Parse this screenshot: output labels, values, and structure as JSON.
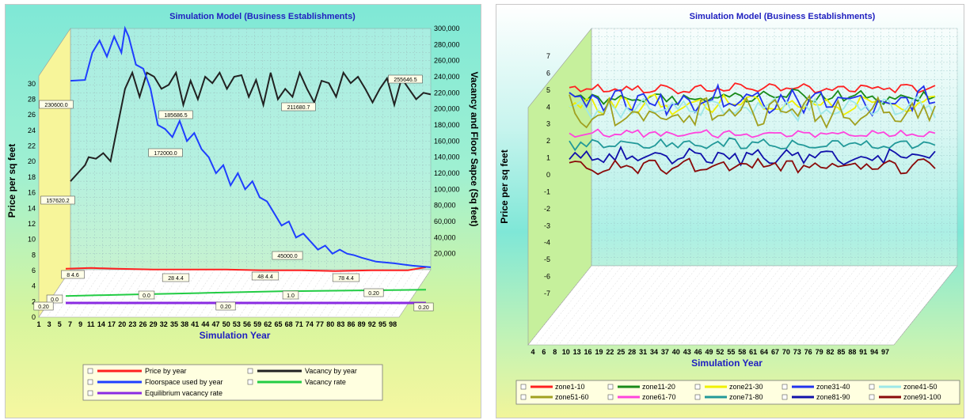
{
  "chart_data": [
    {
      "type": "line",
      "title": "Simulation Model (Business Establishments)",
      "xlabel": "Simulation Year",
      "ylabel": "Price per sq feet",
      "y2label": "Vacancy and Floor Sapce (Sq feet)",
      "x_ticks": [
        "1",
        "3",
        "5",
        "7",
        "9",
        "11",
        "14",
        "17",
        "20",
        "23",
        "26",
        "29",
        "32",
        "35",
        "38",
        "41",
        "44",
        "47",
        "50",
        "53",
        "56",
        "59",
        "62",
        "65",
        "68",
        "71",
        "74",
        "77",
        "80",
        "83",
        "86",
        "89",
        "92",
        "95",
        "98"
      ],
      "y_ticks": [
        "0",
        "2",
        "4",
        "6",
        "8",
        "10",
        "12",
        "14",
        "16",
        "18",
        "20",
        "22",
        "24",
        "26",
        "28",
        "30"
      ],
      "y2_ticks": [
        "20,000",
        "40,000",
        "60,000",
        "80,000",
        "100,000",
        "120,000",
        "140,000",
        "160,000",
        "180,000",
        "200,000",
        "220,000",
        "240,000",
        "260,000",
        "280,000",
        "300,000"
      ],
      "ylim": [
        0,
        31
      ],
      "y2lim": [
        0,
        300000
      ],
      "xlim": [
        1,
        100
      ],
      "grid": true,
      "legend_position": "bottom",
      "series": [
        {
          "name": "Price by year",
          "axis": "left",
          "color": "#ff2020",
          "x": [
            1,
            8,
            15,
            25,
            35,
            45,
            55,
            65,
            75,
            85,
            95,
            100
          ],
          "y": [
            4.7,
            4.8,
            4.7,
            4.6,
            4.6,
            4.6,
            4.5,
            4.5,
            4.4,
            4.5,
            4.5,
            4.9
          ]
        },
        {
          "name": "Vacancy by year",
          "axis": "right",
          "color": "#222222",
          "x": [
            1,
            3,
            5,
            6,
            8,
            10,
            12,
            14,
            16,
            18,
            20,
            22,
            24,
            26,
            28,
            30,
            32,
            34,
            36,
            38,
            40,
            42,
            44,
            46,
            48,
            50,
            52,
            54,
            56,
            58,
            60,
            62,
            64,
            66,
            68,
            70,
            72,
            74,
            76,
            78,
            80,
            82,
            84,
            86,
            88,
            90,
            92,
            94,
            96,
            98,
            100
          ],
          "y": [
            110000,
            120000,
            130000,
            140000,
            138000,
            145000,
            135000,
            180000,
            225000,
            245000,
            215000,
            245000,
            240000,
            225000,
            230000,
            245000,
            205000,
            235000,
            212000,
            240000,
            232000,
            245000,
            225000,
            240000,
            242000,
            215000,
            236000,
            205000,
            245000,
            212000,
            225000,
            215000,
            245000,
            225000,
            208000,
            235000,
            232000,
            215000,
            245000,
            232000,
            240000,
            225000,
            208000,
            225000,
            238000,
            205000,
            238000,
            225000,
            212000,
            220000,
            218000
          ]
        },
        {
          "name": "Floorspace used by year",
          "axis": "right",
          "color": "#1f3fff",
          "x": [
            1,
            5,
            7,
            9,
            11,
            13,
            15,
            16,
            17,
            19,
            21,
            23,
            25,
            27,
            29,
            31,
            33,
            35,
            37,
            39,
            41,
            43,
            45,
            47,
            49,
            51,
            53,
            55,
            57,
            59,
            61,
            63,
            65,
            67,
            69,
            71,
            73,
            75,
            77,
            79,
            81,
            85,
            90,
            95,
            100
          ],
          "y": [
            235000,
            236000,
            270000,
            285000,
            265000,
            290000,
            270000,
            300000,
            290000,
            255000,
            250000,
            225000,
            180000,
            175000,
            165000,
            185000,
            160000,
            170000,
            150000,
            140000,
            120000,
            130000,
            105000,
            120000,
            100000,
            110000,
            90000,
            85000,
            70000,
            55000,
            60000,
            40000,
            45000,
            35000,
            25000,
            30000,
            20000,
            25000,
            20000,
            18000,
            15000,
            10000,
            8000,
            5000,
            3000
          ]
        },
        {
          "name": "Vacancy rate",
          "axis": "left",
          "color": "#22cc44",
          "x": [
            1,
            20,
            40,
            60,
            80,
            100
          ],
          "y": [
            1.2,
            1.4,
            1.6,
            1.8,
            1.9,
            2.0
          ]
        },
        {
          "name": "Equilibrium vacancy rate",
          "axis": "left",
          "color": "#8a2be2",
          "x": [
            1,
            100
          ],
          "y": [
            0.3,
            0.3
          ]
        }
      ],
      "annotations": [
        "230600.0",
        "157620.2",
        "185686.5",
        "172000.0",
        "211680.7",
        "255646.5",
        "45000.0",
        "8 4.6",
        "28 4.4",
        "48 4.4",
        "78 4.4",
        "0.0",
        "0.0",
        "1.0",
        "0.20",
        "0.20",
        "0.20",
        "0.20"
      ]
    },
    {
      "type": "line",
      "title": "Simulation Model (Business Establishments)",
      "xlabel": "Simulation Year",
      "ylabel": "Price per sq feet",
      "x_ticks": [
        "4",
        "6",
        "8",
        "10",
        "13",
        "16",
        "19",
        "22",
        "25",
        "28",
        "31",
        "34",
        "37",
        "40",
        "43",
        "46",
        "49",
        "52",
        "55",
        "58",
        "61",
        "64",
        "67",
        "70",
        "73",
        "76",
        "79",
        "82",
        "85",
        "88",
        "91",
        "94",
        "97"
      ],
      "y_ticks": [
        "-7",
        "-6",
        "-5",
        "-4",
        "-3",
        "-2",
        "-1",
        "0",
        "1",
        "2",
        "3",
        "4",
        "5",
        "6",
        "7"
      ],
      "ylim": [
        -7,
        7
      ],
      "xlim": [
        4,
        100
      ],
      "grid": true,
      "legend_position": "bottom",
      "series": [
        {
          "name": "zone1-10",
          "color": "#ff2020",
          "base": 5.1,
          "amp": 0.25
        },
        {
          "name": "zone11-20",
          "color": "#1a8a1a",
          "base": 4.6,
          "amp": 0.35
        },
        {
          "name": "zone21-30",
          "color": "#f0f000",
          "base": 4.2,
          "amp": 0.45
        },
        {
          "name": "zone31-40",
          "color": "#2233ee",
          "base": 4.4,
          "amp": 0.6
        },
        {
          "name": "zone41-50",
          "color": "#9ee8e8",
          "base": 3.9,
          "amp": 0.5
        },
        {
          "name": "zone51-60",
          "color": "#a0a020",
          "base": 3.7,
          "amp": 0.7
        },
        {
          "name": "zone61-70",
          "color": "#ff44dd",
          "base": 2.4,
          "amp": 0.2
        },
        {
          "name": "zone71-80",
          "color": "#229999",
          "base": 1.8,
          "amp": 0.25
        },
        {
          "name": "zone81-90",
          "color": "#1111aa",
          "base": 1.1,
          "amp": 0.35
        },
        {
          "name": "zone91-100",
          "color": "#8a0a0a",
          "base": 0.5,
          "amp": 0.35
        }
      ]
    }
  ]
}
